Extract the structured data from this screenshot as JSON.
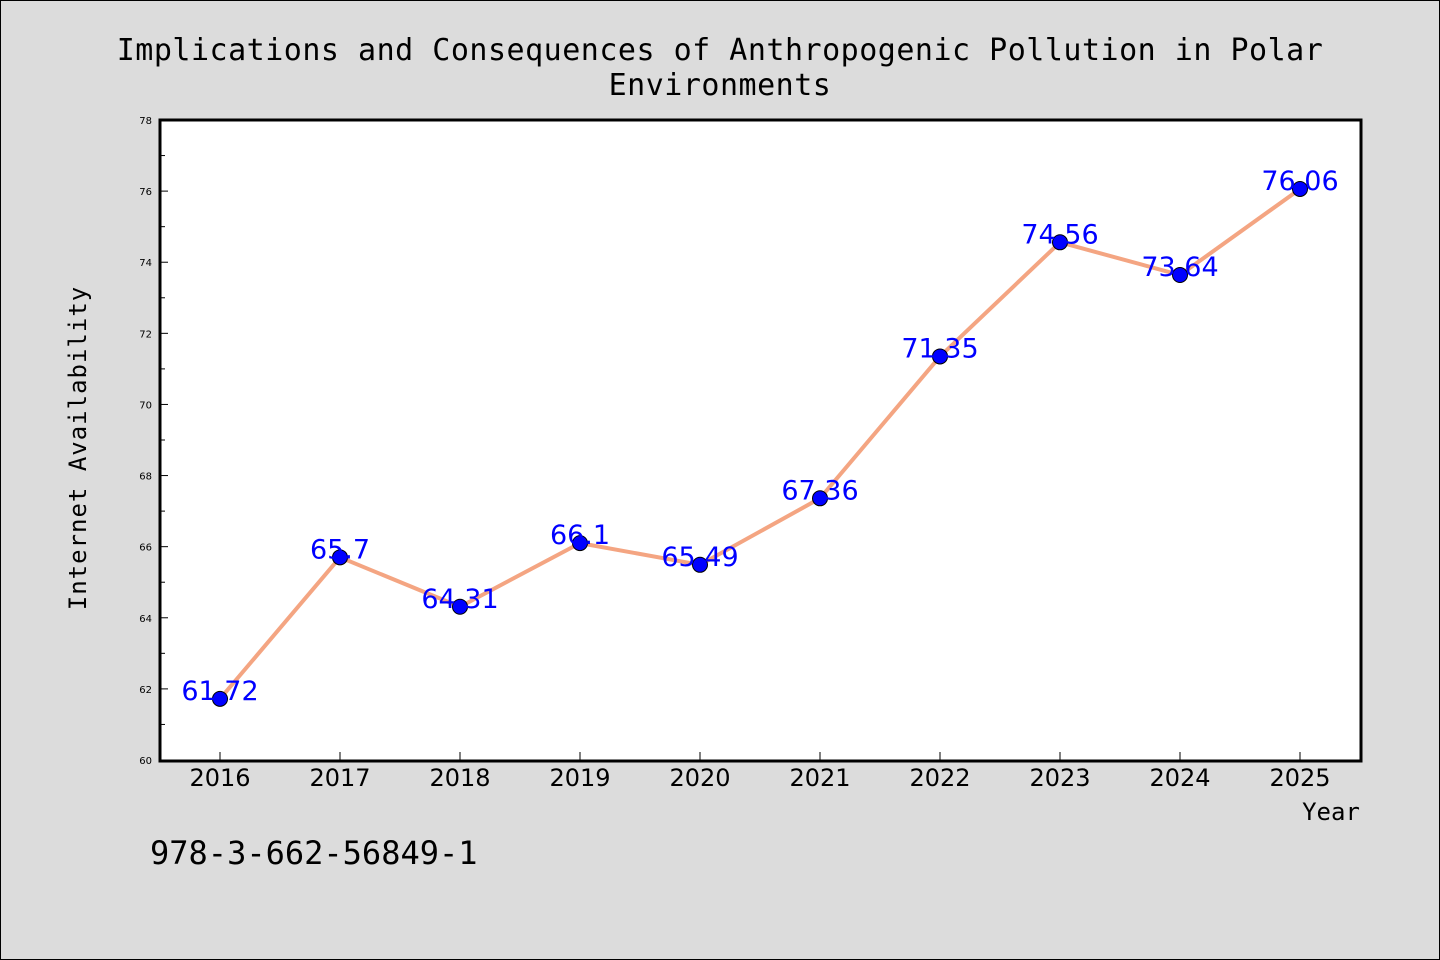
{
  "chart_data": {
    "type": "line",
    "title": "Implications and Consequences of Anthropogenic Pollution in Polar Environments",
    "xlabel": "Year",
    "ylabel": "Internet Availability",
    "categories": [
      "2016",
      "2017",
      "2018",
      "2019",
      "2020",
      "2021",
      "2022",
      "2023",
      "2024",
      "2025"
    ],
    "values": [
      61.72,
      65.7,
      64.31,
      66.1,
      65.49,
      67.36,
      71.35,
      74.56,
      73.64,
      76.06
    ],
    "data_labels": [
      "61.72",
      "65.7",
      "64.31",
      "66.1",
      "65.49",
      "67.36",
      "71.35",
      "74.56",
      "73.64",
      "76.06"
    ],
    "ylim": [
      60,
      78
    ],
    "yticks": [
      "60",
      "62",
      "64",
      "66",
      "68",
      "70",
      "72",
      "74",
      "76",
      "78"
    ],
    "grid": false,
    "legend": "none"
  },
  "footnote": "978-3-662-56849-1",
  "colors": {
    "background": "#dcdcdc",
    "plot_background": "#ffffff",
    "line": "#f4a582",
    "marker": "#0000ff",
    "label": "#0000ff"
  }
}
